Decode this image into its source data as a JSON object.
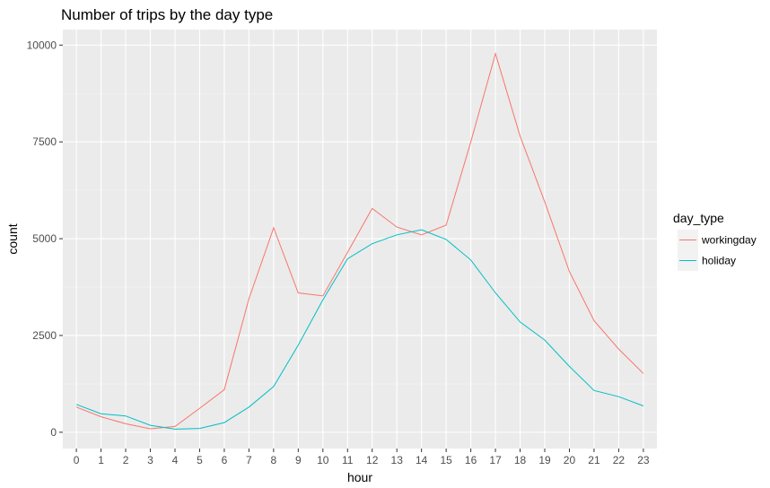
{
  "chart_data": {
    "type": "line",
    "title": "Number of trips by the day type",
    "xlabel": "hour",
    "ylabel": "count",
    "x": [
      0,
      1,
      2,
      3,
      4,
      5,
      6,
      7,
      8,
      9,
      10,
      11,
      12,
      13,
      14,
      15,
      16,
      17,
      18,
      19,
      20,
      21,
      22,
      23
    ],
    "x_ticks": [
      "0",
      "1",
      "2",
      "3",
      "4",
      "5",
      "6",
      "7",
      "8",
      "9",
      "10",
      "11",
      "12",
      "13",
      "14",
      "15",
      "16",
      "17",
      "18",
      "19",
      "20",
      "21",
      "22",
      "23"
    ],
    "xlim": [
      -0.55,
      23.55
    ],
    "ylim": [
      -420,
      10400
    ],
    "y_ticks": [
      0,
      2500,
      5000,
      7500,
      10000
    ],
    "y_tick_labels": [
      "0",
      "2500",
      "5000",
      "7500",
      "10000"
    ],
    "grid": true,
    "legend": {
      "title": "day_type",
      "position": "right"
    },
    "series": [
      {
        "name": "workingday",
        "color": "#F8766D",
        "values": [
          650,
          400,
          220,
          90,
          150,
          620,
          1100,
          3450,
          5280,
          3600,
          3520,
          4650,
          5780,
          5300,
          5100,
          5350,
          7500,
          9780,
          7650,
          5950,
          4150,
          2880,
          2150,
          1520
        ]
      },
      {
        "name": "holiday",
        "color": "#00BFC4",
        "values": [
          720,
          480,
          420,
          180,
          80,
          100,
          250,
          650,
          1180,
          2250,
          3420,
          4480,
          4870,
          5100,
          5230,
          4980,
          4450,
          3600,
          2850,
          2380,
          1700,
          1080,
          920,
          680
        ]
      }
    ]
  }
}
